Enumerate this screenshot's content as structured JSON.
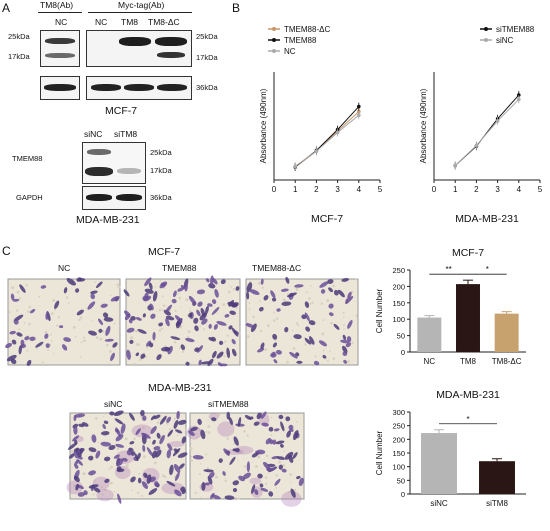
{
  "panel_labels": {
    "a": "A",
    "b": "B",
    "c": "C"
  },
  "panel_a": {
    "antibody_tm8": "TM8(Ab)",
    "antibody_myc": "Myc-tag(Ab)",
    "lane_nc": "NC",
    "lane_nc2": "NC",
    "lane_tm8": "TM8",
    "lane_tm8dc": "TM8-ΔC",
    "mw_25_left": "25kDa",
    "mw_17_left": "17kDa",
    "mw_25_right": "25kDa",
    "mw_17_right": "17kDa",
    "mw_36_right": "36kDa",
    "cell_line_mcf7": "MCF-7",
    "lane_sinc": "siNC",
    "lane_sitm8": "siTM8",
    "row_tmem88": "TMEM88",
    "row_gapdh": "GAPDH",
    "mw_25_b": "25kDa",
    "mw_17_b": "17kDa",
    "mw_36_b": "36kDa",
    "cell_line_mda": "MDA-MB-231"
  },
  "panel_c": {
    "title_mcf7": "MCF-7",
    "img_nc": "NC",
    "img_tmem88": "TMEM88",
    "img_tmem88dc": "TMEM88-ΔC",
    "title_mda": "MDA-MB-231",
    "img_sinc": "siNC",
    "img_sitmem88": "siTMEM88"
  },
  "chart_data": [
    {
      "type": "line",
      "xlabel": "MCF-7",
      "ylabel": "Absorbance (490nm)",
      "xlim": [
        0,
        5
      ],
      "ylim": [
        0,
        1.5
      ],
      "x_ticks": [
        0,
        1,
        2,
        3,
        4,
        5
      ],
      "legend_position": "top-left",
      "series": [
        {
          "name": "TMEM88-ΔC",
          "color": "#c8956a",
          "x": [
            1,
            2,
            3,
            4
          ],
          "y": [
            0.18,
            0.4,
            0.68,
            0.95
          ]
        },
        {
          "name": "TMEM88",
          "color": "#111111",
          "x": [
            1,
            2,
            3,
            4
          ],
          "y": [
            0.18,
            0.41,
            0.7,
            1.02
          ]
        },
        {
          "name": "NC",
          "color": "#aaaaaa",
          "x": [
            1,
            2,
            3,
            4
          ],
          "y": [
            0.19,
            0.4,
            0.66,
            0.9
          ]
        }
      ]
    },
    {
      "type": "line",
      "xlabel": "MDA-MB-231",
      "ylabel": "Absorbance (490nm)",
      "xlim": [
        0,
        5
      ],
      "ylim": [
        0,
        1.5
      ],
      "x_ticks": [
        0,
        1,
        2,
        3,
        4,
        5
      ],
      "legend_position": "top-right",
      "series": [
        {
          "name": "siTMEM88",
          "color": "#111111",
          "x": [
            1,
            2,
            3,
            4
          ],
          "y": [
            0.2,
            0.47,
            0.85,
            1.18
          ]
        },
        {
          "name": "siNC",
          "color": "#aaaaaa",
          "x": [
            1,
            2,
            3,
            4
          ],
          "y": [
            0.2,
            0.48,
            0.82,
            1.12
          ]
        }
      ]
    },
    {
      "type": "bar",
      "title": "MCF-7",
      "ylabel": "Cell Number",
      "categories": [
        "NC",
        "TM8",
        "TM8-ΔC"
      ],
      "values": [
        105,
        207,
        117
      ],
      "errors": [
        6,
        12,
        6
      ],
      "colors": [
        "#b5b5b5",
        "#2a1614",
        "#c8a26e"
      ],
      "ylim": [
        0,
        250
      ],
      "y_ticks": [
        0,
        50,
        100,
        150,
        200,
        250
      ],
      "significance": [
        {
          "from": 0,
          "to": 1,
          "label": "**"
        },
        {
          "from": 1,
          "to": 2,
          "label": "*"
        }
      ]
    },
    {
      "type": "bar",
      "title": "MDA-MB-231",
      "ylabel": "Cell Number",
      "categories": [
        "siNC",
        "siTM8"
      ],
      "values": [
        223,
        120
      ],
      "errors": [
        12,
        9
      ],
      "colors": [
        "#b5b5b5",
        "#2a1614"
      ],
      "ylim": [
        0,
        300
      ],
      "y_ticks": [
        0,
        50,
        100,
        150,
        200,
        250,
        300
      ],
      "significance": [
        {
          "from": 0,
          "to": 1,
          "label": "*"
        }
      ]
    }
  ]
}
